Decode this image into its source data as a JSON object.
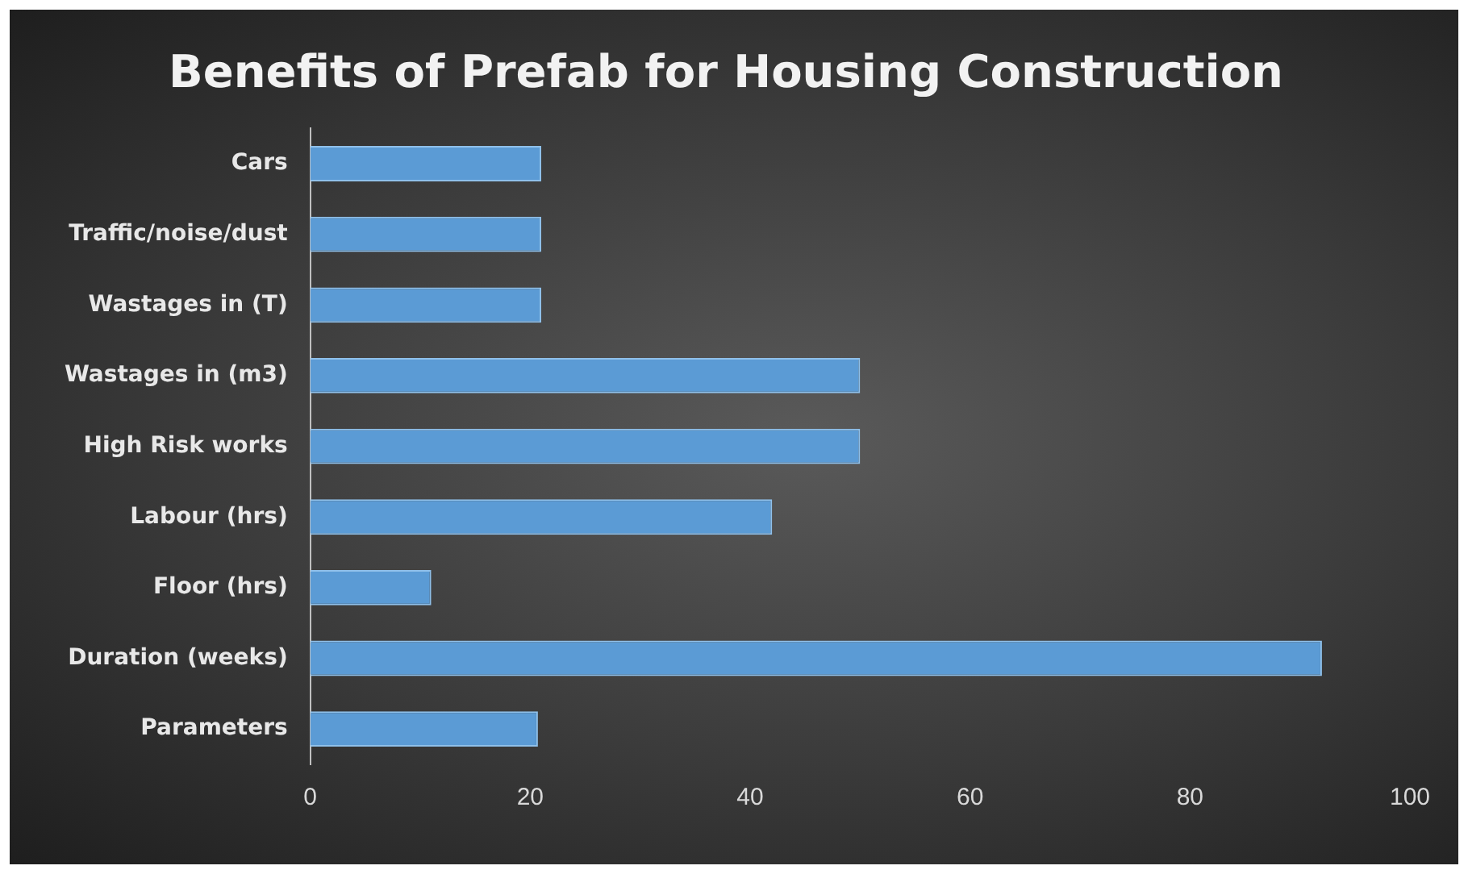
{
  "chart_data": {
    "type": "bar",
    "orientation": "horizontal",
    "title": "Benefits of Prefab for Housing Construction",
    "categories": [
      "Cars",
      "Traffic/noise/dust",
      "Wastages in (T)",
      "Wastages in (m3)",
      "High Risk works",
      "Labour (hrs)",
      "Floor (hrs)",
      "Duration (weeks)",
      "Parameters"
    ],
    "values": [
      21,
      21,
      21,
      50,
      50,
      42,
      11,
      92,
      20.7
    ],
    "color": "#5b9bd5",
    "xlim": [
      0,
      100
    ],
    "xticks": [
      0,
      20,
      40,
      60,
      80,
      100
    ],
    "grid": false,
    "legend": false
  }
}
